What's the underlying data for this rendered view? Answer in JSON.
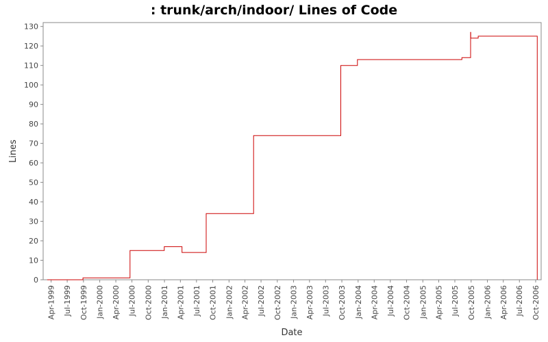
{
  "chart_data": {
    "type": "line",
    "title": ": trunk/arch/indoor/ Lines of Code",
    "xlabel": "Date",
    "ylabel": "Lines",
    "ylim": [
      0,
      132
    ],
    "xlim": [
      "1999-02-15",
      "2006-11-01"
    ],
    "y_ticks": [
      0,
      10,
      20,
      30,
      40,
      50,
      60,
      70,
      80,
      90,
      100,
      110,
      120,
      130
    ],
    "x_ticks": [
      {
        "date": "1999-04-01",
        "label": "Apr-1999"
      },
      {
        "date": "1999-07-01",
        "label": "Jul-1999"
      },
      {
        "date": "1999-10-01",
        "label": "Oct-1999"
      },
      {
        "date": "2000-01-01",
        "label": "Jan-2000"
      },
      {
        "date": "2000-04-01",
        "label": "Apr-2000"
      },
      {
        "date": "2000-07-01",
        "label": "Jul-2000"
      },
      {
        "date": "2000-10-01",
        "label": "Oct-2000"
      },
      {
        "date": "2001-01-01",
        "label": "Jan-2001"
      },
      {
        "date": "2001-04-01",
        "label": "Apr-2001"
      },
      {
        "date": "2001-07-01",
        "label": "Jul-2001"
      },
      {
        "date": "2001-10-01",
        "label": "Oct-2001"
      },
      {
        "date": "2002-01-01",
        "label": "Jan-2002"
      },
      {
        "date": "2002-04-01",
        "label": "Apr-2002"
      },
      {
        "date": "2002-07-01",
        "label": "Jul-2002"
      },
      {
        "date": "2002-10-01",
        "label": "Oct-2002"
      },
      {
        "date": "2003-01-01",
        "label": "Jan-2003"
      },
      {
        "date": "2003-04-01",
        "label": "Apr-2003"
      },
      {
        "date": "2003-07-01",
        "label": "Jul-2003"
      },
      {
        "date": "2003-10-01",
        "label": "Oct-2003"
      },
      {
        "date": "2004-01-01",
        "label": "Jan-2004"
      },
      {
        "date": "2004-04-01",
        "label": "Apr-2004"
      },
      {
        "date": "2004-07-01",
        "label": "Jul-2004"
      },
      {
        "date": "2004-10-01",
        "label": "Oct-2004"
      },
      {
        "date": "2005-01-01",
        "label": "Jan-2005"
      },
      {
        "date": "2005-04-01",
        "label": "Apr-2005"
      },
      {
        "date": "2005-07-01",
        "label": "Jul-2005"
      },
      {
        "date": "2005-10-01",
        "label": "Oct-2005"
      },
      {
        "date": "2006-01-01",
        "label": "Jan-2006"
      },
      {
        "date": "2006-04-01",
        "label": "Apr-2006"
      },
      {
        "date": "2006-07-01",
        "label": "Jul-2006"
      },
      {
        "date": "2006-10-01",
        "label": "Oct-2006"
      }
    ],
    "grid": false,
    "series": [
      {
        "color": "#cc0000",
        "step": true,
        "points": [
          {
            "x": "1999-03-10",
            "y": 0
          },
          {
            "x": "1999-09-28",
            "y": 1
          },
          {
            "x": "2000-06-20",
            "y": 15
          },
          {
            "x": "2000-12-31",
            "y": 17
          },
          {
            "x": "2001-04-10",
            "y": 14
          },
          {
            "x": "2001-08-25",
            "y": 34
          },
          {
            "x": "2002-05-20",
            "y": 74
          },
          {
            "x": "2003-09-25",
            "y": 110
          },
          {
            "x": "2003-12-28",
            "y": 113
          },
          {
            "x": "2005-08-10",
            "y": 114
          },
          {
            "x": "2005-09-28",
            "y": 127
          },
          {
            "x": "2005-09-29",
            "y": 124
          },
          {
            "x": "2005-11-10",
            "y": 125
          },
          {
            "x": "2006-10-10",
            "y": 0
          }
        ]
      }
    ]
  }
}
